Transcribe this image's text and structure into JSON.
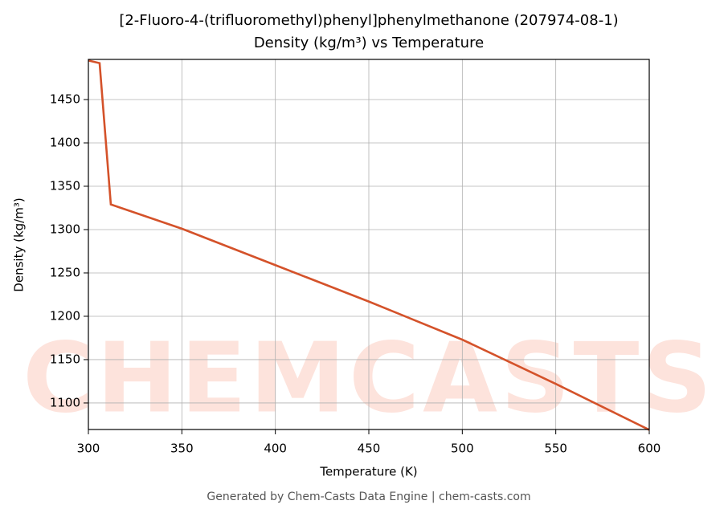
{
  "chart_data": {
    "type": "line",
    "title": "[2-Fluoro-4-(trifluoromethyl)phenyl]phenylmethanone (207974-08-1)",
    "subtitle": "Density (kg/m³) vs Temperature",
    "x_label": "Temperature (K)",
    "y_label": "Density (kg/m³)",
    "footer": "Generated by Chem-Casts Data Engine | chem-casts.com",
    "watermark": "CHEMCASTS",
    "x": [
      300,
      306,
      312,
      350,
      400,
      450,
      500,
      550,
      600
    ],
    "series": [
      {
        "name": "Density",
        "color": "#d4522a",
        "values": [
          1495,
          1492,
          1329,
          1301,
          1259,
          1217,
          1173,
          1122,
          1069
        ]
      }
    ],
    "xlim": [
      300,
      600
    ],
    "ylim": [
      1069.4,
      1496.3
    ],
    "xticks": [
      300,
      350,
      400,
      450,
      500,
      550,
      600
    ],
    "yticks": [
      1100,
      1150,
      1200,
      1250,
      1300,
      1350,
      1400,
      1450
    ],
    "grid": true
  }
}
